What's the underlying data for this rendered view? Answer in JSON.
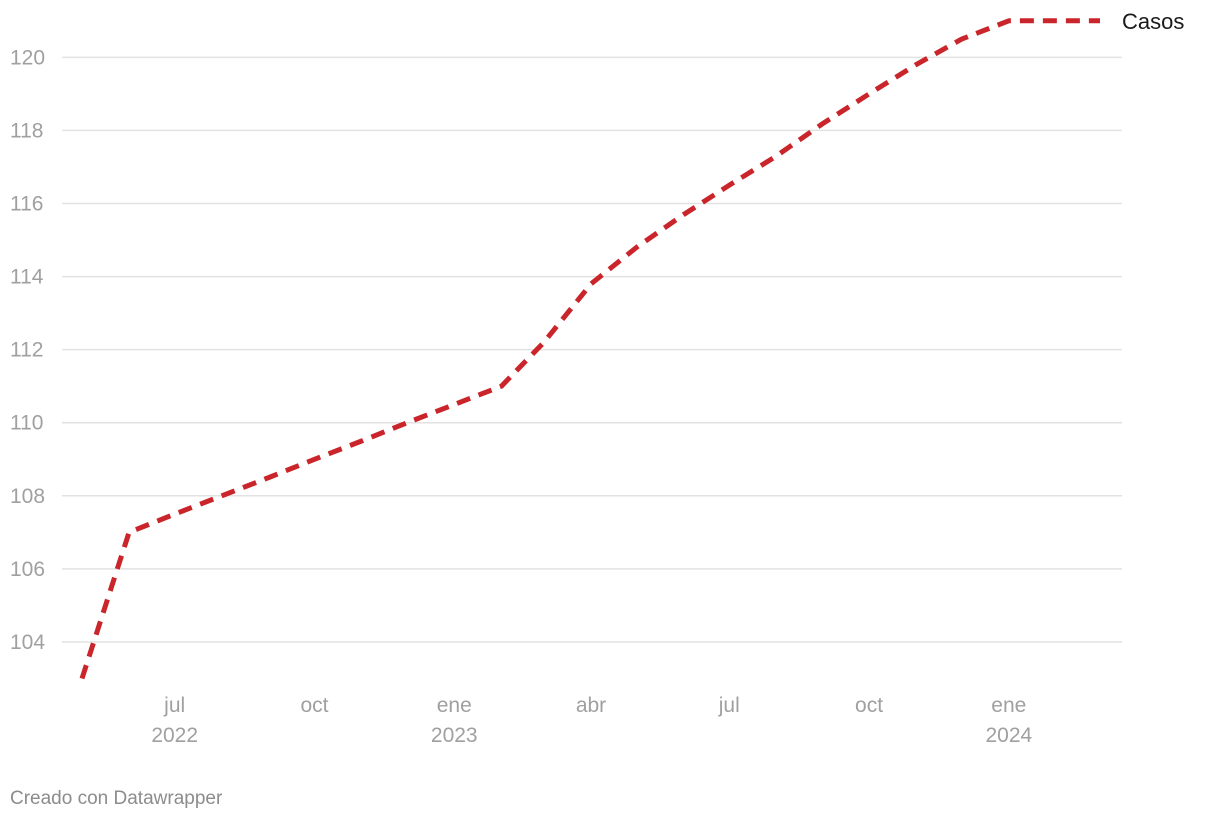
{
  "chart_data": {
    "type": "line",
    "title": "",
    "xlabel": "",
    "ylabel": "",
    "ylim": [
      103,
      121
    ],
    "xlim": [
      "2022-05-01",
      "2024-03-31"
    ],
    "grid": true,
    "y_ticks": [
      104,
      106,
      108,
      110,
      112,
      114,
      116,
      118,
      120
    ],
    "y_tick_labels": [
      "104",
      "106",
      "108",
      "110",
      "112",
      "114",
      "116",
      "118",
      "120"
    ],
    "x_ticks": [
      {
        "date": "2022-07-01",
        "month": "jul",
        "year": "2022"
      },
      {
        "date": "2022-10-01",
        "month": "oct",
        "year": ""
      },
      {
        "date": "2023-01-01",
        "month": "ene",
        "year": "2023"
      },
      {
        "date": "2023-04-01",
        "month": "abr",
        "year": ""
      },
      {
        "date": "2023-07-01",
        "month": "jul",
        "year": ""
      },
      {
        "date": "2023-10-01",
        "month": "oct",
        "year": ""
      },
      {
        "date": "2024-01-01",
        "month": "ene",
        "year": "2024"
      }
    ],
    "series": [
      {
        "name": "Casos",
        "color": "#c9252b",
        "line_style": "dashed",
        "x": [
          "2022-05-01",
          "2022-06-01",
          "2022-07-01",
          "2022-08-01",
          "2022-09-01",
          "2022-10-01",
          "2022-11-01",
          "2022-12-01",
          "2023-01-01",
          "2023-02-01",
          "2023-03-01",
          "2023-04-01",
          "2023-05-01",
          "2023-06-01",
          "2023-07-01",
          "2023-08-01",
          "2023-09-01",
          "2023-10-01",
          "2023-11-01",
          "2023-12-01",
          "2024-01-01",
          "2024-02-01",
          "2024-03-01"
        ],
        "values": [
          103,
          107,
          107.5,
          108,
          108.5,
          109,
          109.5,
          110,
          110.5,
          111,
          112.2,
          113.8,
          114.8,
          115.7,
          116.5,
          117.3,
          118.2,
          119,
          119.8,
          120.5,
          121,
          121,
          121
        ]
      }
    ]
  },
  "credit": "Creado con Datawrapper"
}
